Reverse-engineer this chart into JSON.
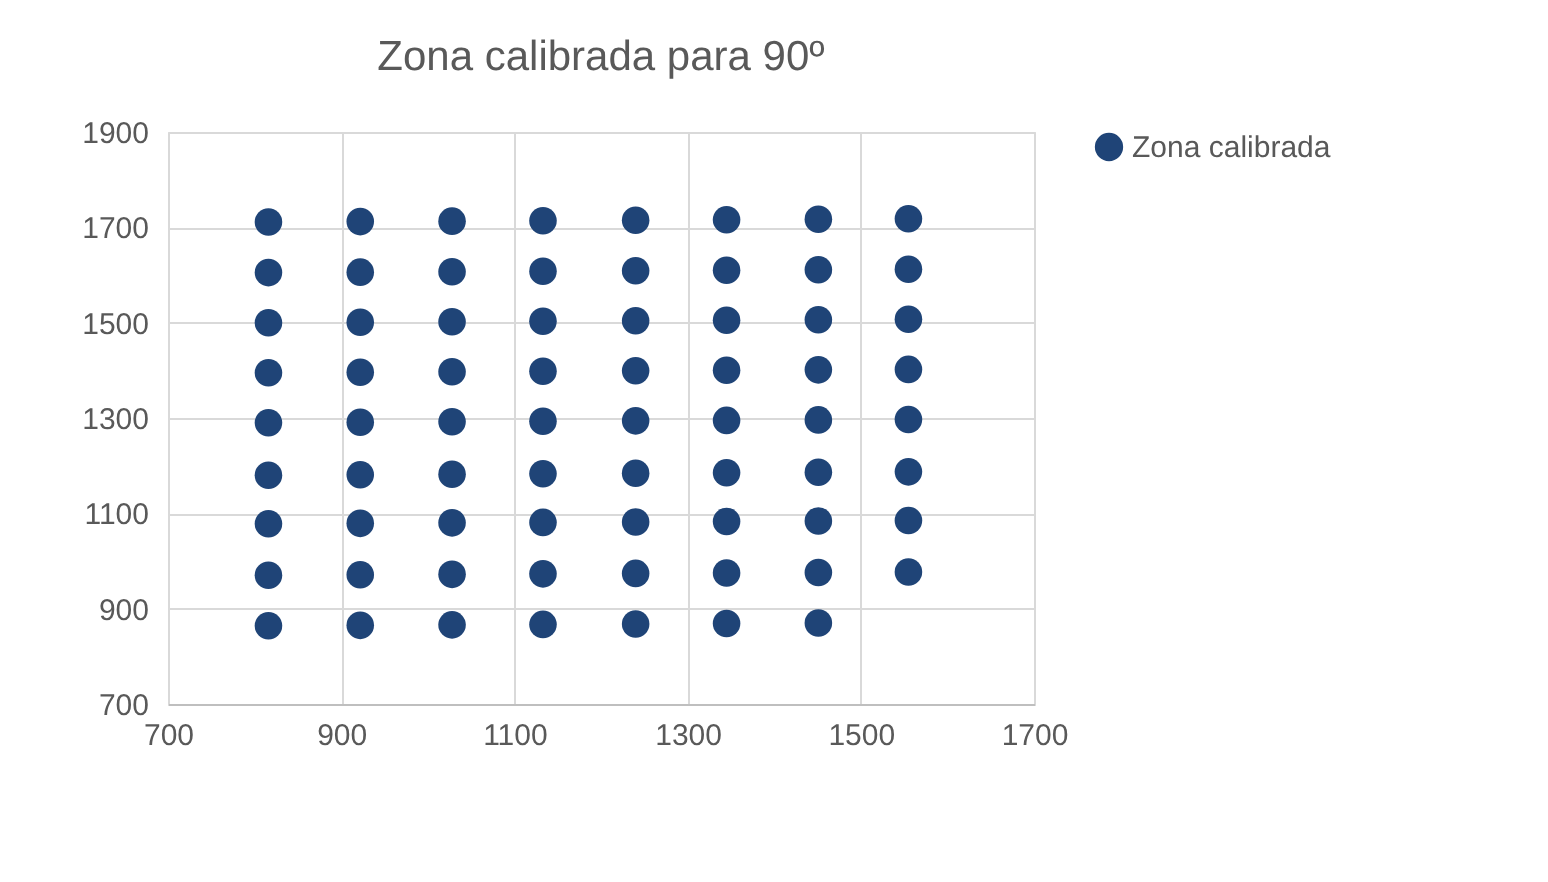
{
  "chart_data": {
    "type": "scatter",
    "title": "Zona calibrada para 90º",
    "xlim": [
      700,
      1700
    ],
    "xticks": [
      700,
      900,
      1100,
      1300,
      1500,
      1700
    ],
    "ylim": [
      700,
      1900
    ],
    "yticks": [
      700,
      900,
      1100,
      1300,
      1500,
      1700,
      1900
    ],
    "grid": true,
    "legend": "right",
    "marker": "circle",
    "series": [
      {
        "name": "Zona calibrada",
        "color": "#1f4477",
        "x": [
          816,
          816,
          816,
          816,
          816,
          816,
          816,
          816,
          816,
          922,
          922,
          922,
          922,
          922,
          922,
          922,
          922,
          922,
          1028,
          1028,
          1028,
          1028,
          1028,
          1028,
          1028,
          1028,
          1028,
          1133,
          1133,
          1133,
          1133,
          1133,
          1133,
          1133,
          1133,
          1133,
          1240,
          1240,
          1240,
          1240,
          1240,
          1240,
          1240,
          1240,
          1240,
          1345,
          1345,
          1345,
          1345,
          1345,
          1345,
          1345,
          1345,
          1345,
          1451,
          1451,
          1451,
          1451,
          1451,
          1451,
          1451,
          1451,
          1451,
          1555,
          1555,
          1555,
          1555,
          1555,
          1555,
          1555,
          1555
        ],
        "values": [
          1711,
          1605,
          1500,
          1395,
          1290,
          1180,
          1078,
          970,
          864,
          1712,
          1606,
          1501,
          1396,
          1291,
          1181,
          1079,
          971,
          865,
          1713,
          1607,
          1502,
          1397,
          1292,
          1182,
          1080,
          972,
          866,
          1714,
          1608,
          1503,
          1398,
          1293,
          1183,
          1081,
          973,
          867,
          1715,
          1609,
          1504,
          1399,
          1294,
          1184,
          1082,
          974,
          868,
          1716,
          1610,
          1505,
          1400,
          1295,
          1185,
          1083,
          975,
          869,
          1717,
          1611,
          1506,
          1401,
          1296,
          1186,
          1084,
          976,
          870,
          1718,
          1612,
          1507,
          1402,
          1297,
          1187,
          1085,
          977
        ]
      }
    ]
  }
}
